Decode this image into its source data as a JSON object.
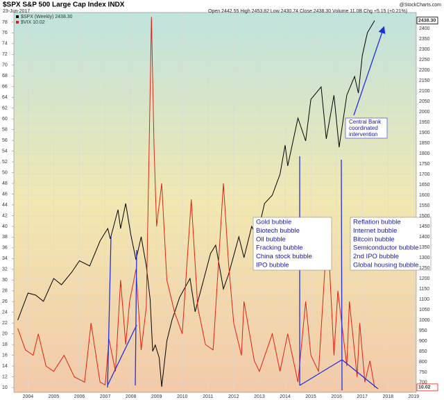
{
  "chart_data": {
    "type": "line",
    "title": "$SPX S&P 500 Large Cap Index INDX",
    "date": "23-Jun-2017",
    "quote": "Open 2442.55  High 2453.82  Low 2430.74  Close 2438.30  Volume 11.0B  Chg +5.15 (+0.21%)",
    "source": "@StockCharts.com",
    "annotations": [
      [
        "Central Bank",
        "coordinated",
        "intervention"
      ],
      [
        "Gold bubble",
        "Biotech bubble",
        "Oil bubble",
        "Fracking bubble",
        "China stock bubble",
        "IPO bubble"
      ],
      [
        "Reflation bubble",
        "Internet bubble",
        "Bitcoin bubble",
        "Semiconductor bubble",
        "2nd IPO bubble",
        "Global housing bubble"
      ]
    ],
    "xlim": [
      2003.45,
      2019.1
    ],
    "xticks": [
      2004,
      2005,
      2006,
      2007,
      2008,
      2009,
      2010,
      2011,
      2012,
      2013,
      2014,
      2015,
      2016,
      2017,
      2018,
      2019
    ],
    "ylim": [
      9.1,
      79.8
    ],
    "yticks": [
      10,
      12,
      14,
      16,
      18,
      20,
      22,
      24,
      26,
      28,
      30,
      32,
      34,
      36,
      38,
      40,
      42,
      44,
      46,
      48,
      50,
      52,
      54,
      56,
      58,
      60,
      62,
      64,
      66,
      68,
      70,
      72,
      74,
      76,
      78
    ],
    "y2lim": [
      653,
      2477
    ],
    "y2ticks": [
      700,
      750,
      800,
      850,
      900,
      950,
      1000,
      1050,
      1100,
      1150,
      1200,
      1250,
      1300,
      1350,
      1400,
      1450,
      1500,
      1550,
      1600,
      1650,
      1700,
      1750,
      1800,
      1850,
      1900,
      1950,
      2000,
      2050,
      2100,
      2150,
      2200,
      2250,
      2300,
      2350,
      2400
    ],
    "series": [
      {
        "name": "$SPX (Weekly) 2438.30",
        "color": "#000000",
        "axis": "y2",
        "last_value_label": "2438.30",
        "x": [
          2003.6,
          2004.0,
          2004.3,
          2004.6,
          2005.0,
          2005.3,
          2005.7,
          2006.0,
          2006.4,
          2006.8,
          2007.1,
          2007.2,
          2007.5,
          2007.6,
          2007.8,
          2008.0,
          2008.2,
          2008.4,
          2008.6,
          2008.75,
          2008.85,
          2008.95,
          2009.1,
          2009.2,
          2009.4,
          2009.6,
          2009.9,
          2010.3,
          2010.5,
          2010.8,
          2011.1,
          2011.3,
          2011.6,
          2011.8,
          2012.2,
          2012.4,
          2012.7,
          2012.9,
          2013.2,
          2013.5,
          2013.8,
          2014.0,
          2014.1,
          2014.5,
          2014.8,
          2015.0,
          2015.4,
          2015.6,
          2015.9,
          2016.1,
          2016.4,
          2016.7,
          2016.85,
          2017.0,
          2017.2,
          2017.48
        ],
        "values": [
          1000,
          1130,
          1120,
          1090,
          1200,
          1170,
          1230,
          1285,
          1260,
          1380,
          1440,
          1390,
          1530,
          1440,
          1560,
          1410,
          1290,
          1400,
          1260,
          1100,
          850,
          880,
          820,
          680,
          900,
          1000,
          1110,
          1200,
          1040,
          1180,
          1320,
          1360,
          1150,
          1220,
          1400,
          1300,
          1450,
          1400,
          1560,
          1600,
          1700,
          1840,
          1740,
          1970,
          1860,
          2060,
          2120,
          1870,
          2080,
          1830,
          2080,
          2170,
          2090,
          2270,
          2380,
          2438.3
        ]
      },
      {
        "name": "$VIX 10.02",
        "color": "#e02010",
        "axis": "y",
        "last_value_label": "10.02",
        "x": [
          2003.6,
          2003.9,
          2004.2,
          2004.4,
          2004.7,
          2005.0,
          2005.4,
          2005.8,
          2006.2,
          2006.45,
          2006.8,
          2007.0,
          2007.15,
          2007.4,
          2007.6,
          2007.8,
          2007.95,
          2008.2,
          2008.4,
          2008.6,
          2008.8,
          2008.9,
          2009.0,
          2009.2,
          2009.4,
          2009.7,
          2010.0,
          2010.35,
          2010.6,
          2010.9,
          2011.2,
          2011.6,
          2011.8,
          2012.0,
          2012.3,
          2012.4,
          2012.8,
          2013.0,
          2013.5,
          2013.8,
          2014.1,
          2014.5,
          2014.8,
          2015.0,
          2015.3,
          2015.65,
          2015.9,
          2016.05,
          2016.4,
          2016.5,
          2016.8,
          2016.9,
          2017.1,
          2017.3,
          2017.48
        ],
        "values": [
          21,
          17,
          16,
          20,
          14,
          13,
          16,
          12,
          11,
          22,
          11,
          10.5,
          19,
          13,
          30,
          18,
          26,
          32,
          17,
          25,
          79,
          55,
          40,
          48,
          30,
          24,
          20,
          45,
          25,
          18,
          17,
          48,
          33,
          22,
          16,
          26,
          15,
          13,
          20,
          13,
          20,
          11,
          26,
          16,
          13,
          40,
          16,
          28,
          14,
          26,
          12,
          22,
          11,
          15,
          10.02
        ]
      }
    ]
  }
}
